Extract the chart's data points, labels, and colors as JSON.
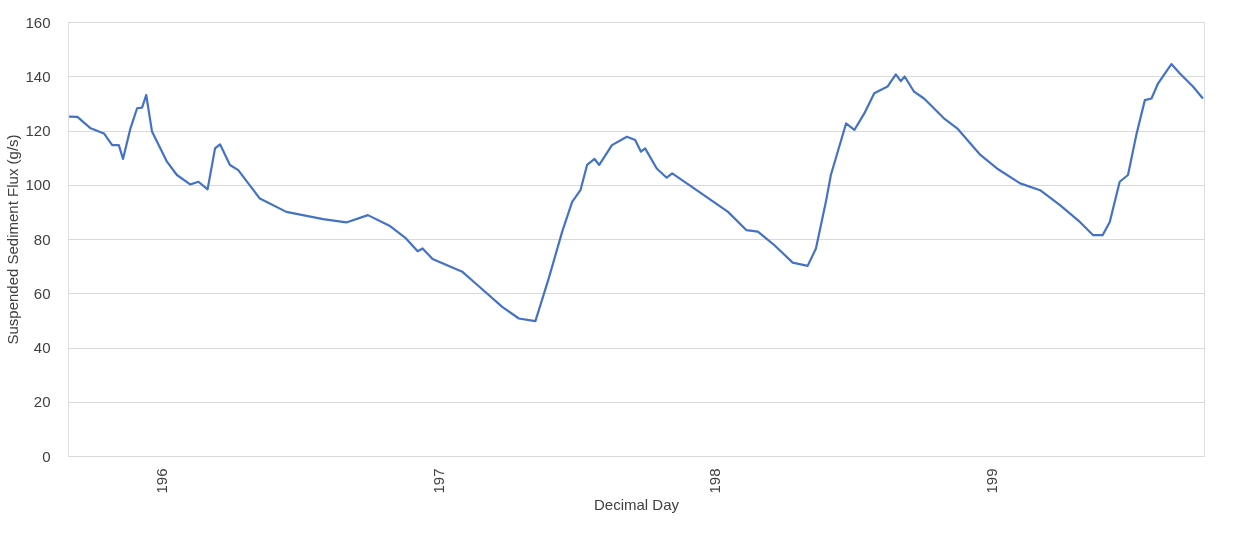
{
  "chart_data": {
    "type": "line",
    "xlabel": "Decimal Day",
    "ylabel": "Suspended Sediment Flux (g/s)",
    "xlim": [
      195.66,
      199.77
    ],
    "xticks": [
      196,
      197,
      198,
      199
    ],
    "ylim": [
      0,
      160
    ],
    "yticks": [
      0,
      20,
      40,
      60,
      80,
      100,
      120,
      140,
      160
    ],
    "grid": "y",
    "marker": "none",
    "line_style": "solid",
    "series": [
      {
        "color": "#4472c4",
        "x": [
          195.664,
          195.694,
          195.742,
          195.79,
          195.82,
          195.844,
          195.859,
          195.886,
          195.91,
          195.928,
          195.943,
          195.964,
          196.018,
          196.054,
          196.102,
          196.132,
          196.165,
          196.192,
          196.21,
          196.246,
          196.276,
          196.354,
          196.45,
          196.583,
          196.667,
          196.745,
          196.823,
          196.883,
          196.925,
          196.943,
          196.979,
          197.063,
          197.087,
          197.135,
          197.231,
          197.291,
          197.351,
          197.399,
          197.448,
          197.484,
          197.514,
          197.538,
          197.565,
          197.582,
          197.628,
          197.682,
          197.712,
          197.733,
          197.748,
          197.79,
          197.826,
          197.846,
          197.916,
          198.048,
          198.114,
          198.156,
          198.216,
          198.282,
          198.336,
          198.366,
          198.402,
          198.42,
          198.475,
          198.505,
          198.541,
          198.577,
          198.625,
          198.655,
          198.673,
          198.687,
          198.721,
          198.757,
          198.829,
          198.877,
          198.961,
          199.021,
          199.105,
          199.177,
          199.249,
          199.321,
          199.369,
          199.403,
          199.429,
          199.465,
          199.495,
          199.525,
          199.556,
          199.58,
          199.604,
          199.652,
          199.682,
          199.73,
          199.766
        ],
        "values": [
          125.1,
          125,
          120.8,
          118.9,
          114.6,
          114.6,
          109.5,
          120.8,
          128.2,
          128.4,
          133.1,
          119.6,
          108.5,
          103.6,
          100.1,
          101.1,
          98.3,
          113.4,
          114.9,
          107.3,
          105.4,
          94.9,
          90.0,
          87.3,
          86.1,
          88.8,
          84.9,
          80.2,
          75.5,
          76.5,
          72.6,
          68.9,
          67.9,
          63.6,
          55.0,
          50.7,
          49.7,
          65.4,
          82.7,
          93.7,
          98.0,
          107.3,
          109.5,
          107.3,
          114.6,
          117.7,
          116.5,
          112.2,
          113.4,
          106.0,
          102.6,
          104.2,
          99.3,
          90.0,
          83.3,
          82.7,
          77.7,
          71.3,
          70.1,
          76.5,
          93.7,
          103.6,
          122.6,
          120.2,
          126.3,
          133.7,
          136.2,
          140.7,
          138.2,
          139.9,
          134.3,
          131.8,
          124.5,
          120.8,
          111.0,
          106.0,
          100.5,
          98.0,
          92.5,
          86.3,
          81.4,
          81.4,
          86.3,
          101.1,
          103.6,
          118.3,
          131.2,
          131.8,
          137.4,
          144.5,
          141.1,
          136.2,
          131.8
        ]
      }
    ]
  }
}
